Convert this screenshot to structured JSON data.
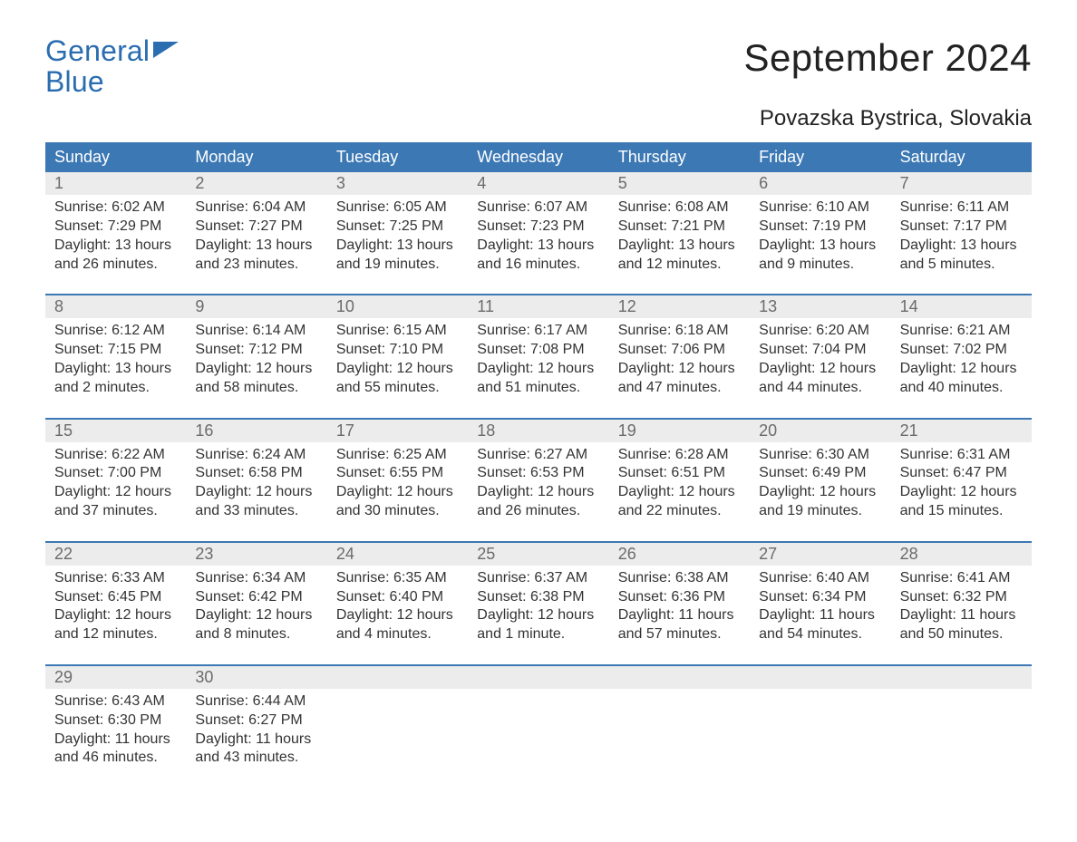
{
  "colors": {
    "header_bg": "#3c78b4",
    "header_fg": "#ffffff",
    "daynum_bg": "#ececec",
    "daynum_fg": "#6b6b6b",
    "week_divider": "#3c78b4",
    "logo_color": "#2a6db0",
    "text": "#333333",
    "page_bg": "#ffffff"
  },
  "logo": {
    "line1": "General",
    "line2": "Blue"
  },
  "title": "September 2024",
  "location": "Povazska Bystrica, Slovakia",
  "days_of_week": [
    "Sunday",
    "Monday",
    "Tuesday",
    "Wednesday",
    "Thursday",
    "Friday",
    "Saturday"
  ],
  "weeks": [
    [
      {
        "n": "1",
        "sunrise": "Sunrise: 6:02 AM",
        "sunset": "Sunset: 7:29 PM",
        "dl1": "Daylight: 13 hours",
        "dl2": "and 26 minutes."
      },
      {
        "n": "2",
        "sunrise": "Sunrise: 6:04 AM",
        "sunset": "Sunset: 7:27 PM",
        "dl1": "Daylight: 13 hours",
        "dl2": "and 23 minutes."
      },
      {
        "n": "3",
        "sunrise": "Sunrise: 6:05 AM",
        "sunset": "Sunset: 7:25 PM",
        "dl1": "Daylight: 13 hours",
        "dl2": "and 19 minutes."
      },
      {
        "n": "4",
        "sunrise": "Sunrise: 6:07 AM",
        "sunset": "Sunset: 7:23 PM",
        "dl1": "Daylight: 13 hours",
        "dl2": "and 16 minutes."
      },
      {
        "n": "5",
        "sunrise": "Sunrise: 6:08 AM",
        "sunset": "Sunset: 7:21 PM",
        "dl1": "Daylight: 13 hours",
        "dl2": "and 12 minutes."
      },
      {
        "n": "6",
        "sunrise": "Sunrise: 6:10 AM",
        "sunset": "Sunset: 7:19 PM",
        "dl1": "Daylight: 13 hours",
        "dl2": "and 9 minutes."
      },
      {
        "n": "7",
        "sunrise": "Sunrise: 6:11 AM",
        "sunset": "Sunset: 7:17 PM",
        "dl1": "Daylight: 13 hours",
        "dl2": "and 5 minutes."
      }
    ],
    [
      {
        "n": "8",
        "sunrise": "Sunrise: 6:12 AM",
        "sunset": "Sunset: 7:15 PM",
        "dl1": "Daylight: 13 hours",
        "dl2": "and 2 minutes."
      },
      {
        "n": "9",
        "sunrise": "Sunrise: 6:14 AM",
        "sunset": "Sunset: 7:12 PM",
        "dl1": "Daylight: 12 hours",
        "dl2": "and 58 minutes."
      },
      {
        "n": "10",
        "sunrise": "Sunrise: 6:15 AM",
        "sunset": "Sunset: 7:10 PM",
        "dl1": "Daylight: 12 hours",
        "dl2": "and 55 minutes."
      },
      {
        "n": "11",
        "sunrise": "Sunrise: 6:17 AM",
        "sunset": "Sunset: 7:08 PM",
        "dl1": "Daylight: 12 hours",
        "dl2": "and 51 minutes."
      },
      {
        "n": "12",
        "sunrise": "Sunrise: 6:18 AM",
        "sunset": "Sunset: 7:06 PM",
        "dl1": "Daylight: 12 hours",
        "dl2": "and 47 minutes."
      },
      {
        "n": "13",
        "sunrise": "Sunrise: 6:20 AM",
        "sunset": "Sunset: 7:04 PM",
        "dl1": "Daylight: 12 hours",
        "dl2": "and 44 minutes."
      },
      {
        "n": "14",
        "sunrise": "Sunrise: 6:21 AM",
        "sunset": "Sunset: 7:02 PM",
        "dl1": "Daylight: 12 hours",
        "dl2": "and 40 minutes."
      }
    ],
    [
      {
        "n": "15",
        "sunrise": "Sunrise: 6:22 AM",
        "sunset": "Sunset: 7:00 PM",
        "dl1": "Daylight: 12 hours",
        "dl2": "and 37 minutes."
      },
      {
        "n": "16",
        "sunrise": "Sunrise: 6:24 AM",
        "sunset": "Sunset: 6:58 PM",
        "dl1": "Daylight: 12 hours",
        "dl2": "and 33 minutes."
      },
      {
        "n": "17",
        "sunrise": "Sunrise: 6:25 AM",
        "sunset": "Sunset: 6:55 PM",
        "dl1": "Daylight: 12 hours",
        "dl2": "and 30 minutes."
      },
      {
        "n": "18",
        "sunrise": "Sunrise: 6:27 AM",
        "sunset": "Sunset: 6:53 PM",
        "dl1": "Daylight: 12 hours",
        "dl2": "and 26 minutes."
      },
      {
        "n": "19",
        "sunrise": "Sunrise: 6:28 AM",
        "sunset": "Sunset: 6:51 PM",
        "dl1": "Daylight: 12 hours",
        "dl2": "and 22 minutes."
      },
      {
        "n": "20",
        "sunrise": "Sunrise: 6:30 AM",
        "sunset": "Sunset: 6:49 PM",
        "dl1": "Daylight: 12 hours",
        "dl2": "and 19 minutes."
      },
      {
        "n": "21",
        "sunrise": "Sunrise: 6:31 AM",
        "sunset": "Sunset: 6:47 PM",
        "dl1": "Daylight: 12 hours",
        "dl2": "and 15 minutes."
      }
    ],
    [
      {
        "n": "22",
        "sunrise": "Sunrise: 6:33 AM",
        "sunset": "Sunset: 6:45 PM",
        "dl1": "Daylight: 12 hours",
        "dl2": "and 12 minutes."
      },
      {
        "n": "23",
        "sunrise": "Sunrise: 6:34 AM",
        "sunset": "Sunset: 6:42 PM",
        "dl1": "Daylight: 12 hours",
        "dl2": "and 8 minutes."
      },
      {
        "n": "24",
        "sunrise": "Sunrise: 6:35 AM",
        "sunset": "Sunset: 6:40 PM",
        "dl1": "Daylight: 12 hours",
        "dl2": "and 4 minutes."
      },
      {
        "n": "25",
        "sunrise": "Sunrise: 6:37 AM",
        "sunset": "Sunset: 6:38 PM",
        "dl1": "Daylight: 12 hours",
        "dl2": "and 1 minute."
      },
      {
        "n": "26",
        "sunrise": "Sunrise: 6:38 AM",
        "sunset": "Sunset: 6:36 PM",
        "dl1": "Daylight: 11 hours",
        "dl2": "and 57 minutes."
      },
      {
        "n": "27",
        "sunrise": "Sunrise: 6:40 AM",
        "sunset": "Sunset: 6:34 PM",
        "dl1": "Daylight: 11 hours",
        "dl2": "and 54 minutes."
      },
      {
        "n": "28",
        "sunrise": "Sunrise: 6:41 AM",
        "sunset": "Sunset: 6:32 PM",
        "dl1": "Daylight: 11 hours",
        "dl2": "and 50 minutes."
      }
    ],
    [
      {
        "n": "29",
        "sunrise": "Sunrise: 6:43 AM",
        "sunset": "Sunset: 6:30 PM",
        "dl1": "Daylight: 11 hours",
        "dl2": "and 46 minutes."
      },
      {
        "n": "30",
        "sunrise": "Sunrise: 6:44 AM",
        "sunset": "Sunset: 6:27 PM",
        "dl1": "Daylight: 11 hours",
        "dl2": "and 43 minutes."
      },
      null,
      null,
      null,
      null,
      null
    ]
  ]
}
